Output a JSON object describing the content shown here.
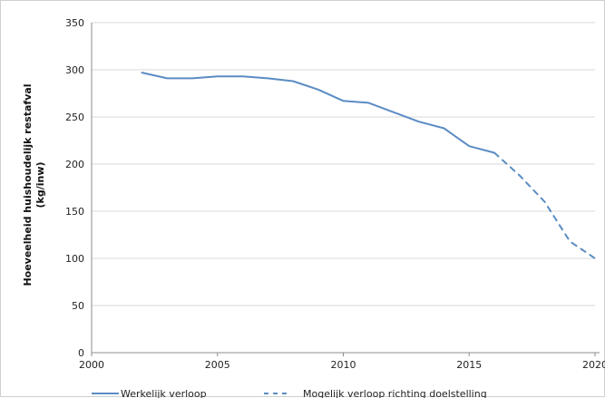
{
  "chart_data": {
    "type": "line",
    "title": "",
    "ylabel_lines": [
      "Hoeveelheid huishoudelijk restafval",
      "(kg/inw)"
    ],
    "xlabel": "",
    "xlim": [
      2000,
      2020
    ],
    "ylim": [
      0,
      350
    ],
    "x_ticks": [
      2000,
      2005,
      2010,
      2015,
      2020
    ],
    "y_ticks": [
      0,
      50,
      100,
      150,
      200,
      250,
      300,
      350
    ],
    "grid": "horizontal",
    "legend_position": "bottom",
    "colors": {
      "series": "#5b8cc4",
      "grid": "#d9d9d9",
      "axis": "#8c8c8c"
    },
    "series": [
      {
        "name": "Werkelijk verloop",
        "style": "solid",
        "x": [
          2002,
          2003,
          2004,
          2005,
          2006,
          2007,
          2008,
          2009,
          2010,
          2011,
          2012,
          2013,
          2014,
          2015,
          2016
        ],
        "y": [
          297,
          291,
          291,
          293,
          293,
          291,
          288,
          279,
          267,
          265,
          255,
          245,
          238,
          219,
          212
        ]
      },
      {
        "name": "Mogelijk verloop richting doelstelling",
        "style": "dashed",
        "x": [
          2016,
          2017,
          2018,
          2019,
          2020
        ],
        "y": [
          212,
          188,
          160,
          118,
          100
        ]
      }
    ]
  }
}
